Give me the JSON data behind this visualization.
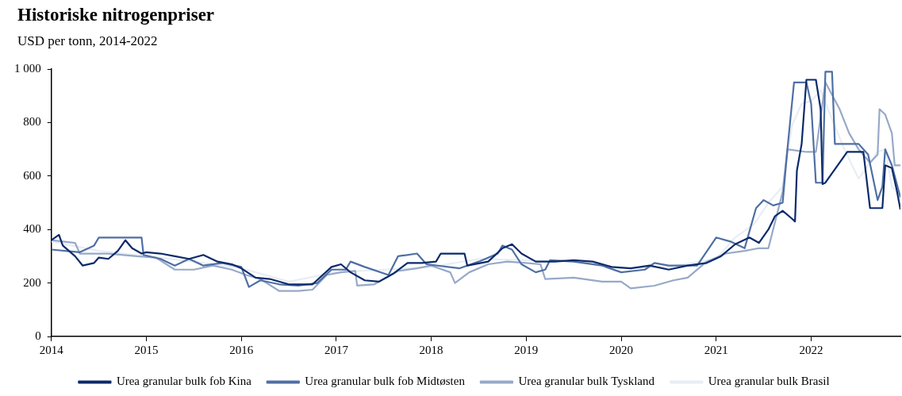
{
  "chart_data": {
    "type": "line",
    "title": "Historiske nitrogenpriser",
    "subtitle": "USD per tonn, 2014-2022",
    "xlim": [
      2014,
      2022.94
    ],
    "xticks": [
      2014,
      2015,
      2016,
      2017,
      2018,
      2019,
      2020,
      2021,
      2022
    ],
    "ylim": [
      0,
      1000
    ],
    "yticks": [
      0,
      200,
      400,
      600,
      800,
      {
        "value": 1000,
        "label": "1 000"
      }
    ],
    "grid": false,
    "legend": "bottom",
    "marker": "none",
    "line_style": "solid",
    "series": [
      {
        "name": "Urea granular bulk fob Kina",
        "color": "#0b2a6b",
        "x": [
          2014.0,
          2014.08,
          2014.12,
          2014.25,
          2014.33,
          2014.45,
          2014.5,
          2014.6,
          2014.7,
          2014.78,
          2014.85,
          2014.95,
          2015.0,
          2015.15,
          2015.3,
          2015.45,
          2015.6,
          2015.75,
          2015.9,
          2016.0,
          2016.15,
          2016.3,
          2016.5,
          2016.75,
          2016.95,
          2017.05,
          2017.15,
          2017.3,
          2017.45,
          2017.6,
          2017.75,
          2017.9,
          2018.05,
          2018.1,
          2018.35,
          2018.38,
          2018.6,
          2018.75,
          2018.85,
          2018.95,
          2019.1,
          2019.3,
          2019.5,
          2019.7,
          2019.9,
          2020.1,
          2020.3,
          2020.5,
          2020.7,
          2020.9,
          2021.05,
          2021.2,
          2021.35,
          2021.45,
          2021.55,
          2021.62,
          2021.7,
          2021.8,
          2021.83,
          2021.85,
          2021.9,
          2021.95,
          2022.05,
          2022.1,
          2022.12,
          2022.15,
          2022.3,
          2022.38,
          2022.55,
          2022.62,
          2022.75,
          2022.78,
          2022.85,
          2022.9,
          2022.94
        ],
        "values": [
          360,
          380,
          340,
          300,
          265,
          275,
          295,
          290,
          320,
          360,
          330,
          310,
          315,
          310,
          300,
          290,
          305,
          280,
          270,
          255,
          220,
          215,
          195,
          195,
          260,
          270,
          240,
          210,
          205,
          235,
          275,
          275,
          280,
          310,
          310,
          265,
          280,
          330,
          345,
          310,
          280,
          280,
          285,
          280,
          260,
          255,
          265,
          250,
          265,
          275,
          300,
          345,
          370,
          350,
          400,
          450,
          470,
          440,
          430,
          620,
          720,
          960,
          960,
          850,
          570,
          575,
          650,
          690,
          690,
          480,
          480,
          640,
          630,
          550,
          475
        ]
      },
      {
        "name": "Urea granular bulk fob Midtøsten",
        "color": "#4f6fa3",
        "x": [
          2014.0,
          2014.3,
          2014.45,
          2014.5,
          2014.78,
          2014.95,
          2014.97,
          2015.15,
          2015.3,
          2015.45,
          2015.6,
          2015.8,
          2016.0,
          2016.08,
          2016.2,
          2016.4,
          2016.6,
          2016.8,
          2016.95,
          2017.1,
          2017.15,
          2017.3,
          2017.55,
          2017.65,
          2017.85,
          2017.95,
          2018.3,
          2018.5,
          2018.7,
          2018.75,
          2018.85,
          2018.95,
          2019.1,
          2019.2,
          2019.25,
          2019.5,
          2019.8,
          2020.0,
          2020.25,
          2020.35,
          2020.5,
          2020.8,
          2021.0,
          2021.15,
          2021.3,
          2021.42,
          2021.5,
          2021.6,
          2021.7,
          2021.75,
          2021.82,
          2021.95,
          2022.0,
          2022.05,
          2022.12,
          2022.15,
          2022.22,
          2022.25,
          2022.5,
          2022.6,
          2022.7,
          2022.75,
          2022.78,
          2022.85,
          2022.94
        ],
        "values": [
          325,
          315,
          340,
          370,
          370,
          370,
          305,
          290,
          265,
          290,
          265,
          275,
          260,
          185,
          210,
          195,
          190,
          200,
          250,
          250,
          280,
          260,
          230,
          300,
          310,
          270,
          255,
          280,
          310,
          340,
          325,
          270,
          240,
          250,
          285,
          280,
          265,
          240,
          250,
          275,
          265,
          265,
          370,
          355,
          330,
          480,
          510,
          490,
          500,
          700,
          950,
          950,
          870,
          575,
          575,
          990,
          990,
          720,
          720,
          680,
          510,
          560,
          700,
          640,
          520
        ]
      },
      {
        "name": "Urea granular bulk Tyskland",
        "color": "#97a9c8",
        "x": [
          2014.0,
          2014.25,
          2014.3,
          2014.6,
          2014.9,
          2015.1,
          2015.3,
          2015.5,
          2015.7,
          2015.9,
          2016.05,
          2016.2,
          2016.4,
          2016.6,
          2016.75,
          2016.9,
          2017.05,
          2017.2,
          2017.22,
          2017.4,
          2017.55,
          2017.65,
          2017.85,
          2018.0,
          2018.2,
          2018.25,
          2018.4,
          2018.6,
          2018.8,
          2019.0,
          2019.15,
          2019.2,
          2019.5,
          2019.8,
          2020.0,
          2020.1,
          2020.35,
          2020.55,
          2020.7,
          2020.9,
          2021.1,
          2021.3,
          2021.45,
          2021.55,
          2021.7,
          2021.75,
          2021.95,
          2022.05,
          2022.15,
          2022.3,
          2022.4,
          2022.5,
          2022.62,
          2022.7,
          2022.72,
          2022.78,
          2022.85,
          2022.88,
          2022.94
        ],
        "values": [
          360,
          350,
          310,
          310,
          300,
          295,
          250,
          250,
          265,
          250,
          230,
          215,
          170,
          170,
          175,
          230,
          240,
          245,
          190,
          195,
          225,
          245,
          255,
          265,
          240,
          200,
          240,
          270,
          280,
          275,
          270,
          215,
          220,
          205,
          205,
          180,
          190,
          210,
          220,
          280,
          310,
          320,
          330,
          330,
          540,
          700,
          690,
          690,
          950,
          850,
          760,
          700,
          650,
          680,
          850,
          830,
          760,
          640,
          640
        ]
      },
      {
        "name": "Urea granular bulk Brasil",
        "color": "#e8edf5",
        "x": [
          2014.0,
          2014.5,
          2015.0,
          2015.5,
          2016.0,
          2016.5,
          2017.0,
          2017.5,
          2018.0,
          2018.5,
          2019.0,
          2019.5,
          2020.0,
          2020.5,
          2021.0,
          2021.2,
          2021.4,
          2021.55,
          2021.7,
          2021.8,
          2021.9,
          2022.0,
          2022.1,
          2022.2,
          2022.35,
          2022.5,
          2022.6,
          2022.7,
          2022.78,
          2022.85,
          2022.94
        ],
        "values": [
          355,
          320,
          300,
          280,
          255,
          205,
          240,
          250,
          260,
          290,
          285,
          280,
          255,
          260,
          290,
          370,
          420,
          500,
          560,
          790,
          870,
          880,
          920,
          830,
          700,
          590,
          640,
          690,
          700,
          560,
          530
        ]
      }
    ]
  }
}
